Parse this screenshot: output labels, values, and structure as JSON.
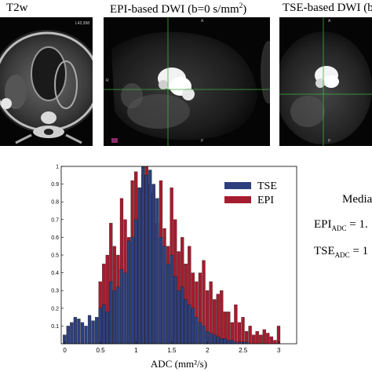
{
  "panels": {
    "t2w_title": "T2w",
    "epi_title": "EPI-based DWI",
    "epi_b_prefix": "(b=0 s/mm",
    "epi_b_sup": "2",
    "epi_b_suffix": ")",
    "tse_title": "TSE-based DWI (b",
    "t2w_corner_label": "L42,398",
    "marker_a": "A",
    "marker_p": "P",
    "marker_r": "R"
  },
  "median": {
    "heading": "Media",
    "epi_main": "EPI",
    "epi_sub": "ADC",
    "epi_value": " = 1.",
    "tse_main": "TSE",
    "tse_sub": "ADC",
    "tse_value": " = 1"
  },
  "colors": {
    "tse": "#2e3f7d",
    "epi": "#a51c2e",
    "crosshair": "#3fae3f"
  },
  "chart_data": {
    "type": "bar",
    "title": "",
    "xlabel": "ADC (mm²/s)",
    "ylabel": "",
    "xlim": [
      -0.05,
      3.25
    ],
    "ylim": [
      0,
      1
    ],
    "xticks": [
      0,
      0.5,
      1,
      1.5,
      2,
      2.5,
      3
    ],
    "xtick_labels": [
      "0",
      "0.5",
      "1",
      "1.5",
      "2",
      "2.5",
      "3"
    ],
    "yticks": [
      0.1,
      0.2,
      0.3,
      0.4,
      0.5,
      0.6,
      0.7,
      0.8,
      0.9,
      1
    ],
    "ytick_labels": [
      "0.1",
      "0.2",
      "0.3",
      "0.4",
      "0.5",
      "0.6",
      "0.7",
      "0.8",
      "0.9",
      "1"
    ],
    "legend_position": "top-right",
    "series": [
      {
        "name": "EPI",
        "x": [
          0.5,
          0.55,
          0.6,
          0.65,
          0.7,
          0.75,
          0.8,
          0.85,
          0.9,
          0.95,
          1.0,
          1.05,
          1.1,
          1.15,
          1.2,
          1.25,
          1.3,
          1.35,
          1.4,
          1.45,
          1.5,
          1.55,
          1.6,
          1.65,
          1.7,
          1.75,
          1.8,
          1.85,
          1.9,
          1.95,
          2.0,
          2.05,
          2.1,
          2.15,
          2.2,
          2.25,
          2.3,
          2.35,
          2.4,
          2.45,
          2.5,
          2.55,
          2.6,
          2.65,
          2.7,
          2.75,
          2.8,
          2.85,
          2.9,
          2.95,
          3.0
        ],
        "values": [
          0.35,
          0.45,
          0.5,
          0.68,
          0.55,
          0.5,
          0.82,
          0.7,
          0.6,
          0.92,
          0.97,
          0.88,
          0.95,
          1.0,
          0.9,
          0.85,
          0.68,
          0.92,
          0.65,
          0.55,
          0.88,
          0.7,
          0.52,
          0.6,
          0.45,
          0.55,
          0.4,
          0.35,
          0.4,
          0.47,
          0.3,
          0.35,
          0.25,
          0.28,
          0.3,
          0.18,
          0.18,
          0.12,
          0.22,
          0.12,
          0.15,
          0.07,
          0.1,
          0.05,
          0.07,
          0.05,
          0.08,
          0.06,
          0.04,
          0.02,
          0.1
        ]
      },
      {
        "name": "TSE",
        "x": [
          0.0,
          0.05,
          0.1,
          0.15,
          0.2,
          0.25,
          0.3,
          0.35,
          0.4,
          0.45,
          0.5,
          0.55,
          0.6,
          0.65,
          0.7,
          0.75,
          0.8,
          0.85,
          0.9,
          0.95,
          1.0,
          1.05,
          1.1,
          1.15,
          1.2,
          1.25,
          1.3,
          1.35,
          1.4,
          1.45,
          1.5,
          1.55,
          1.6,
          1.65,
          1.7,
          1.75,
          1.8,
          1.85,
          1.9,
          1.95,
          2.0,
          2.05,
          2.1,
          2.15,
          2.2,
          2.25,
          2.3,
          2.35,
          2.4,
          2.45,
          2.5,
          2.55,
          2.6,
          2.65,
          2.7,
          2.75,
          2.8,
          2.85,
          2.9,
          2.95,
          3.0
        ],
        "values": [
          0.05,
          0.1,
          0.12,
          0.15,
          0.14,
          0.12,
          0.1,
          0.16,
          0.13,
          0.15,
          0.2,
          0.22,
          0.18,
          0.35,
          0.3,
          0.32,
          0.42,
          0.4,
          0.58,
          0.6,
          0.7,
          0.88,
          1.0,
          0.95,
          0.98,
          0.9,
          0.82,
          0.6,
          0.55,
          0.45,
          0.5,
          0.38,
          0.3,
          0.32,
          0.25,
          0.22,
          0.2,
          0.15,
          0.12,
          0.1,
          0.07,
          0.06,
          0.05,
          0.04,
          0.03,
          0.03,
          0.02,
          0.02,
          0.01,
          0.01,
          0.01,
          0.01,
          0.0,
          0.0,
          0.0,
          0.0,
          0.0,
          0.0,
          0.0,
          0.0,
          0.0
        ]
      }
    ]
  }
}
